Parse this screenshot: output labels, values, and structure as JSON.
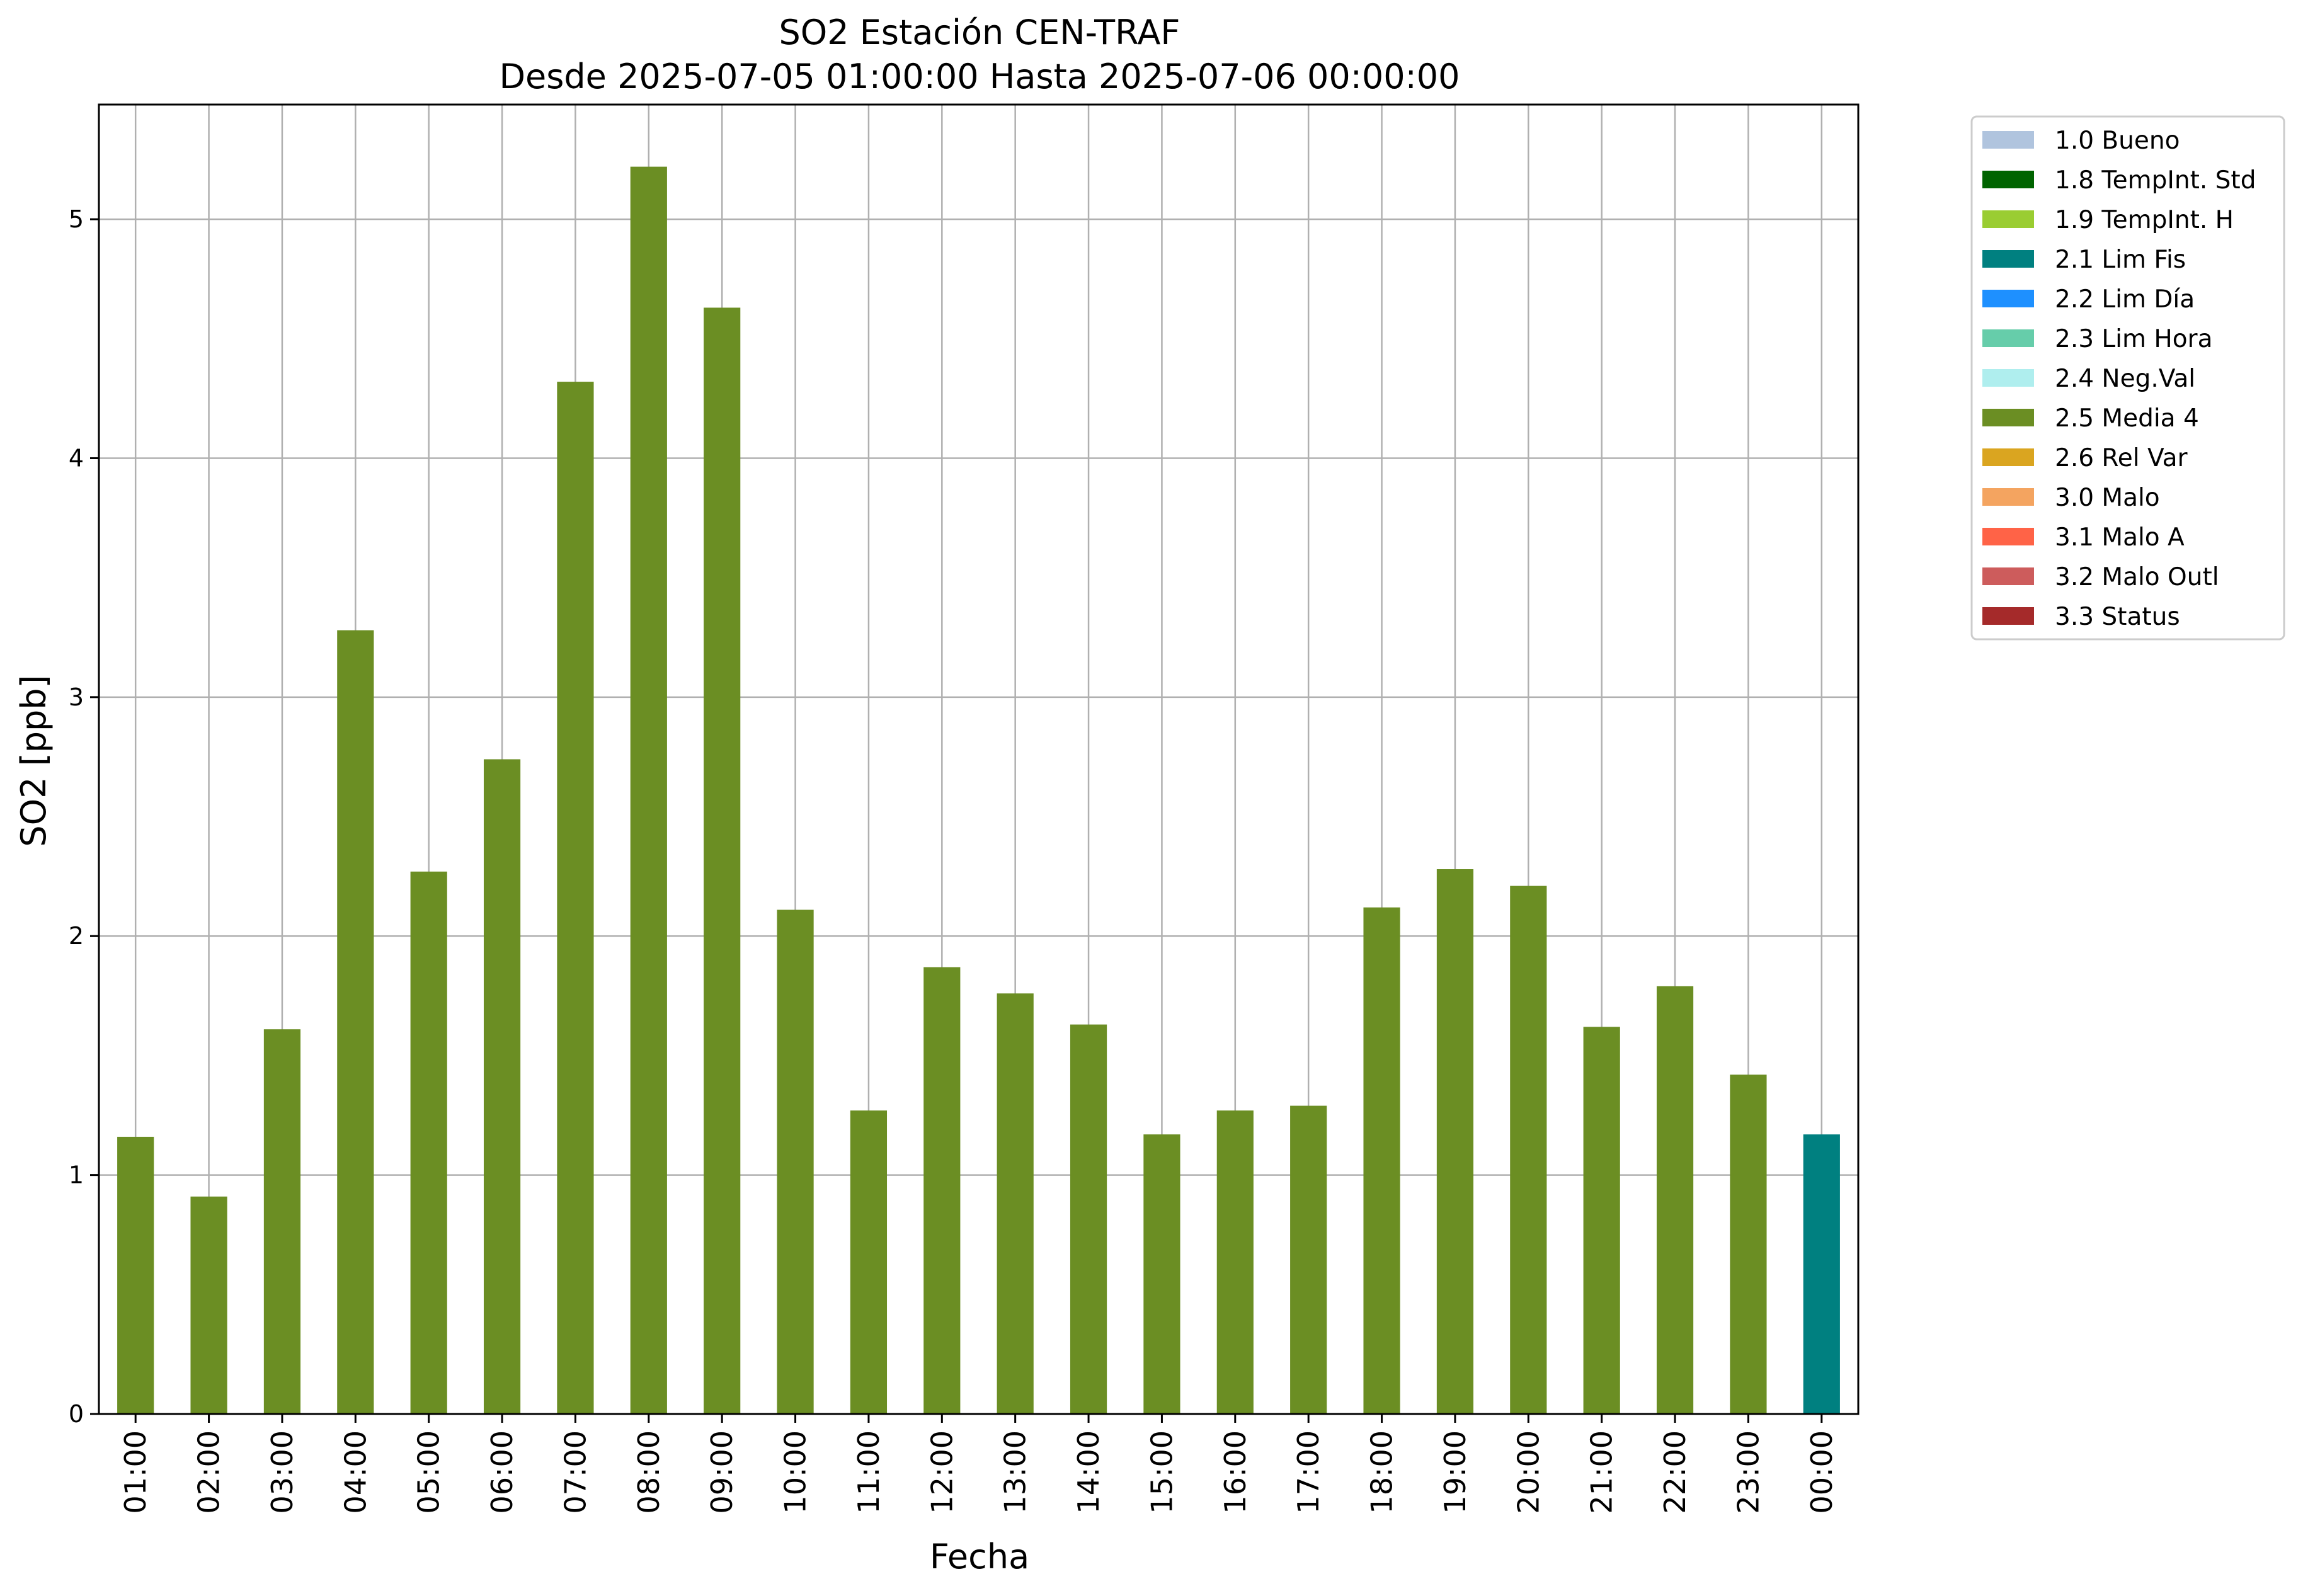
{
  "chart_data": {
    "type": "bar",
    "title": "SO2 Estación CEN-TRAF",
    "subtitle": "Desde 2025-07-05 01:00:00 Hasta 2025-07-06 00:00:00",
    "xlabel": "Fecha",
    "ylabel": "SO2 [ppb]",
    "ylim": [
      0,
      5.48
    ],
    "yticks": [
      0,
      1,
      2,
      3,
      4,
      5
    ],
    "grid": true,
    "legend_position": "outside-right-top",
    "categories": [
      "01:00",
      "02:00",
      "03:00",
      "04:00",
      "05:00",
      "06:00",
      "07:00",
      "08:00",
      "09:00",
      "10:00",
      "11:00",
      "12:00",
      "13:00",
      "14:00",
      "15:00",
      "16:00",
      "17:00",
      "18:00",
      "19:00",
      "20:00",
      "21:00",
      "22:00",
      "23:00",
      "00:00"
    ],
    "values": [
      1.16,
      0.91,
      1.61,
      3.28,
      2.27,
      2.74,
      4.32,
      5.22,
      4.63,
      2.11,
      1.27,
      1.87,
      1.76,
      1.63,
      1.17,
      1.27,
      1.29,
      2.12,
      2.28,
      2.21,
      1.62,
      1.79,
      1.42,
      1.17
    ],
    "flags": [
      "2.5",
      "2.5",
      "2.5",
      "2.5",
      "2.5",
      "2.5",
      "2.5",
      "2.5",
      "2.5",
      "2.5",
      "2.5",
      "2.5",
      "2.5",
      "2.5",
      "2.5",
      "2.5",
      "2.5",
      "2.5",
      "2.5",
      "2.5",
      "2.5",
      "2.5",
      "2.5",
      "2.1"
    ],
    "legend": [
      {
        "code": "1.0",
        "label": "1.0 Bueno",
        "color": "#b0c4de"
      },
      {
        "code": "1.8",
        "label": "1.8 TempInt. Std",
        "color": "#006400"
      },
      {
        "code": "1.9",
        "label": "1.9 TempInt. H",
        "color": "#9acd32"
      },
      {
        "code": "2.1",
        "label": "2.1 Lim Fis",
        "color": "#008080"
      },
      {
        "code": "2.2",
        "label": "2.2 Lim Día",
        "color": "#1e90ff"
      },
      {
        "code": "2.3",
        "label": "2.3 Lim Hora",
        "color": "#66cdaa"
      },
      {
        "code": "2.4",
        "label": "2.4 Neg.Val",
        "color": "#afeeee"
      },
      {
        "code": "2.5",
        "label": "2.5 Media 4",
        "color": "#6b8e23"
      },
      {
        "code": "2.6",
        "label": "2.6 Rel Var",
        "color": "#daa520"
      },
      {
        "code": "3.0",
        "label": "3.0 Malo",
        "color": "#f4a460"
      },
      {
        "code": "3.1",
        "label": "3.1 Malo A",
        "color": "#ff6347"
      },
      {
        "code": "3.2",
        "label": "3.2 Malo Outl",
        "color": "#cd5c5c"
      },
      {
        "code": "3.3",
        "label": "3.3 Status",
        "color": "#a52a2a"
      }
    ]
  }
}
